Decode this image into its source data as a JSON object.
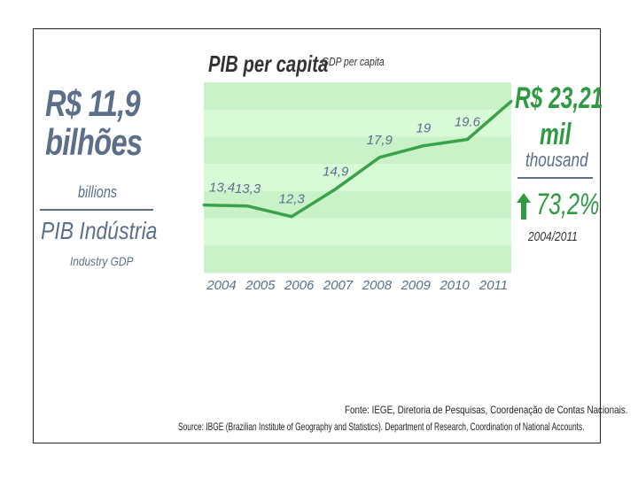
{
  "left_panel": {
    "industry_value_line1": "R$ 11,9",
    "industry_value_line2": "bilhões",
    "industry_value_en": "billions",
    "industry_label": "PIB Indústria",
    "industry_label_en": "Industry GDP"
  },
  "right_panel": {
    "value": "R$ 23,21",
    "unit": "mil",
    "unit_en": "thousand",
    "growth": "73,2%",
    "growth_period": "2004/2011",
    "accent_color": "#2e9a42"
  },
  "source": {
    "pt": "Fonte: IEGE, Diretoria de Pesquisas, Coordenação de Contas Nacionais.",
    "en": "Source: IBGE (Brazilian Institute of Geography and Statistics). Department of Research, Coordination of National Accounts."
  },
  "chart_data": {
    "type": "line",
    "title": "PIB per capita",
    "subtitle": "GDP per capita",
    "categories": [
      "2004",
      "2005",
      "2006",
      "2007",
      "2008",
      "2009",
      "2010",
      "2011"
    ],
    "data_labels": [
      "13,4",
      "13,3",
      "12,3",
      "14,9",
      "17,9",
      "19",
      "19.6",
      ""
    ],
    "series": [
      {
        "values": [
          13.4,
          13.3,
          12.3,
          14.9,
          17.9,
          19.0,
          19.6,
          23.21
        ],
        "color": "#3aa34a"
      }
    ],
    "ylim": [
      7.0,
      25.0
    ],
    "background_stripes": [
      "#c9f2c9",
      "#d9fad6"
    ],
    "grid": false
  }
}
